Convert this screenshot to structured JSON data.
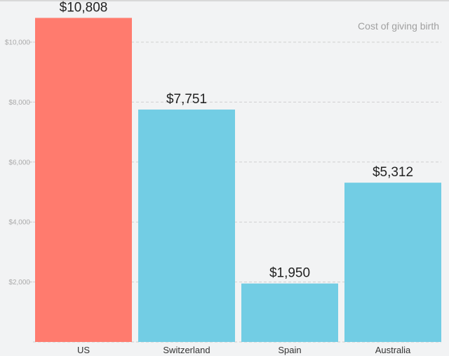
{
  "chart_data": {
    "type": "bar",
    "title": "Cost of giving birth",
    "categories": [
      "US",
      "Switzerland",
      "Spain",
      "Australia"
    ],
    "values": [
      10808,
      7751,
      1950,
      5312
    ],
    "value_labels": [
      "$10,808",
      "$7,751",
      "$1,950",
      "$5,312"
    ],
    "colors": [
      "#ff7b6e",
      "#72cde4",
      "#72cde4",
      "#72cde4"
    ],
    "yticks": [
      2000,
      4000,
      6000,
      8000,
      10000
    ],
    "ytick_labels": [
      "$2,000",
      "$4,000",
      "$6,000",
      "$8,000",
      "$10,000"
    ],
    "ylim": [
      0,
      10808
    ],
    "xlabel": "",
    "ylabel": "",
    "grid": true,
    "legend": "none"
  }
}
